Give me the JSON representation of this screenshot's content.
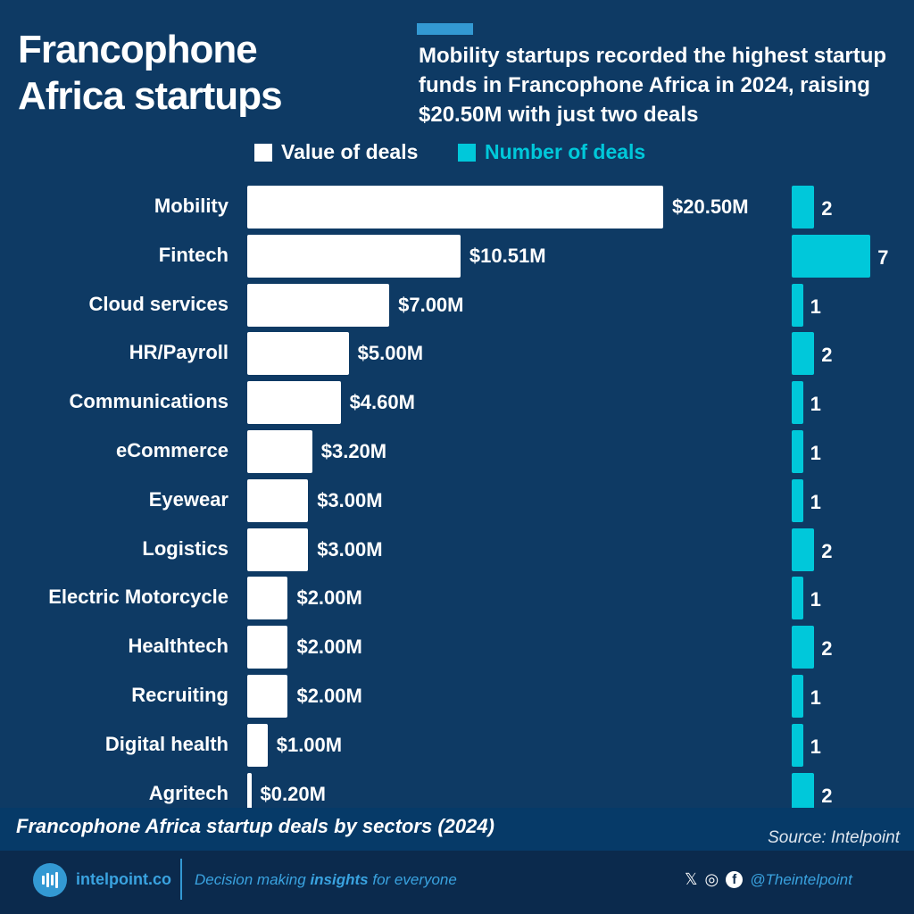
{
  "header": {
    "title": "Francophone Africa startups",
    "subtitle": "Mobility startups recorded the highest startup funds in Francophone Africa in 2024, raising $20.50M with just two deals"
  },
  "colors": {
    "background": "#0e3a64",
    "value_bar": "#ffffff",
    "count_bar": "#00c8da",
    "accent": "#3399d3"
  },
  "chart_data": {
    "type": "bar",
    "orientation": "horizontal",
    "categories": [
      "Mobility",
      "Fintech",
      "Cloud services",
      "HR/Payroll",
      "Communications",
      "eCommerce",
      "Eyewear",
      "Logistics",
      "Electric Motorcycle",
      "Healthtech",
      "Recruiting",
      "Digital health",
      "Agritech"
    ],
    "series": [
      {
        "name": "Value of deals",
        "unit": "$M",
        "values": [
          20.5,
          10.51,
          7.0,
          5.0,
          4.6,
          3.2,
          3.0,
          3.0,
          2.0,
          2.0,
          2.0,
          1.0,
          0.2
        ],
        "labels": [
          "$20.50M",
          "$10.51M",
          "$7.00M",
          "$5.00M",
          "$4.60M",
          "$3.20M",
          "$3.00M",
          "$3.00M",
          "$2.00M",
          "$2.00M",
          "$2.00M",
          "$1.00M",
          "$0.20M"
        ]
      },
      {
        "name": "Number of deals",
        "values": [
          2,
          7,
          1,
          2,
          1,
          1,
          1,
          2,
          1,
          2,
          1,
          1,
          2
        ]
      }
    ],
    "legend": "top",
    "grid": false,
    "title": "Francophone Africa startup deals by sectors (2024)"
  },
  "footer": {
    "source": "Source: Intelpoint",
    "site": "intelpoint.co",
    "tag_pre": "Decision making ",
    "tag_bold": "insights",
    "tag_post": " for everyone",
    "handle": "@Theintelpoint",
    "x_glyph": "𝕏",
    "instagram_glyph": "◎",
    "facebook_glyph": "f"
  }
}
